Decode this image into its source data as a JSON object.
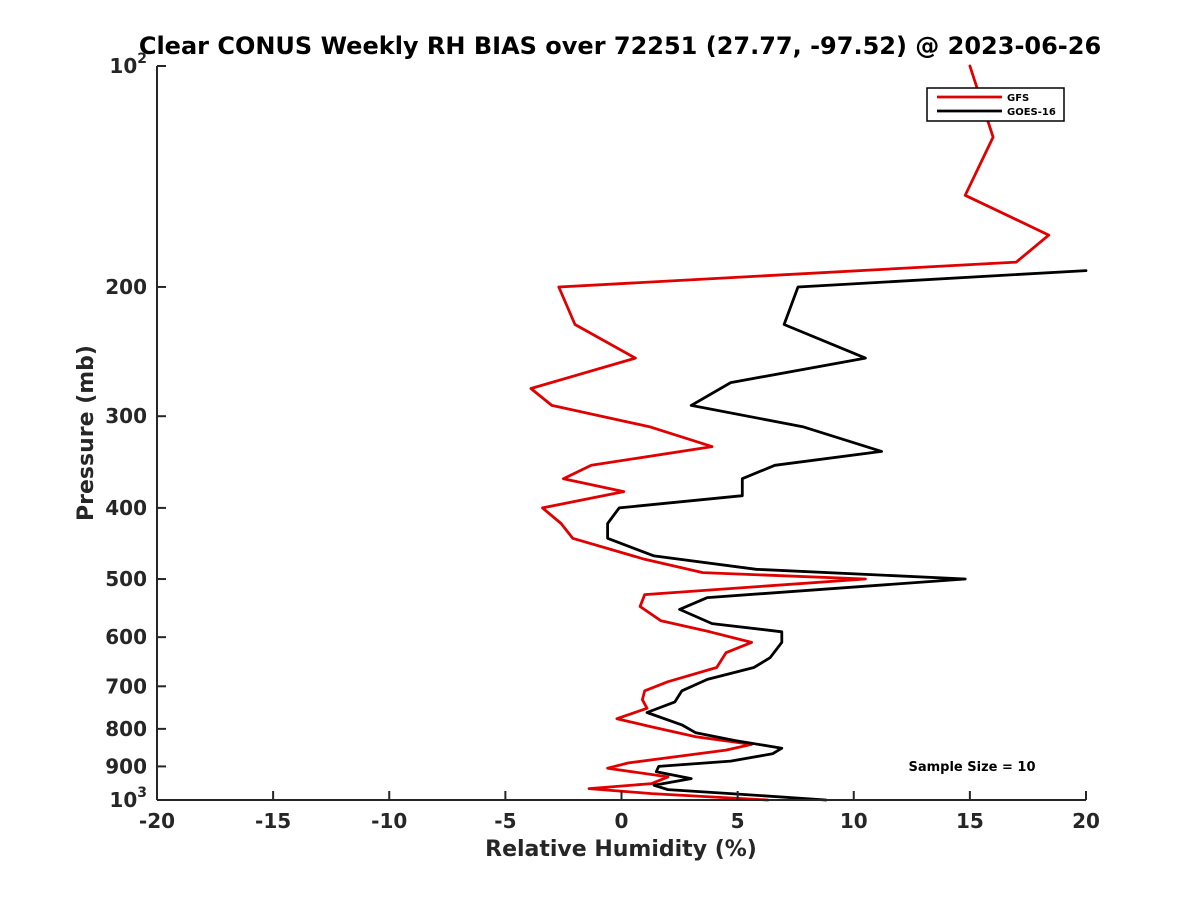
{
  "chart_data": {
    "type": "line",
    "title": "Clear CONUS Weekly RH BIAS over 72251 (27.77, -97.52) @ 2023-06-26",
    "xlabel": "Relative Humidity (%)",
    "ylabel": "Pressure (mb)",
    "xlim": [
      -20,
      20
    ],
    "ylim": [
      100,
      1000
    ],
    "y_scale": "log",
    "y_reversed": true,
    "grid": false,
    "legend_position": "top-right",
    "x_ticks": [
      {
        "value": -20,
        "label": "-20"
      },
      {
        "value": -15,
        "label": "-15"
      },
      {
        "value": -10,
        "label": "-10"
      },
      {
        "value": -5,
        "label": "-5"
      },
      {
        "value": 0,
        "label": "0"
      },
      {
        "value": 5,
        "label": "5"
      },
      {
        "value": 10,
        "label": "10"
      },
      {
        "value": 15,
        "label": "15"
      },
      {
        "value": 20,
        "label": "20"
      }
    ],
    "y_ticks": [
      {
        "value": 100,
        "label": "10",
        "sup": "2"
      },
      {
        "value": 200,
        "label": "200",
        "sup": ""
      },
      {
        "value": 300,
        "label": "300",
        "sup": ""
      },
      {
        "value": 400,
        "label": "400",
        "sup": ""
      },
      {
        "value": 500,
        "label": "500",
        "sup": ""
      },
      {
        "value": 600,
        "label": "600",
        "sup": ""
      },
      {
        "value": 700,
        "label": "700",
        "sup": ""
      },
      {
        "value": 800,
        "label": "800",
        "sup": ""
      },
      {
        "value": 900,
        "label": "900",
        "sup": ""
      },
      {
        "value": 1000,
        "label": "10",
        "sup": "3"
      }
    ],
    "annotation": "Sample Size = 10",
    "series": [
      {
        "name": "GFS",
        "color": "#e00000",
        "points": [
          [
            15.0,
            100
          ],
          [
            16.0,
            125
          ],
          [
            14.8,
            150
          ],
          [
            18.4,
            170
          ],
          [
            17.0,
            185
          ],
          [
            -2.7,
            200
          ],
          [
            -2.0,
            225
          ],
          [
            0.6,
            250
          ],
          [
            -3.9,
            275
          ],
          [
            -3.0,
            290
          ],
          [
            1.2,
            310
          ],
          [
            3.9,
            330
          ],
          [
            -1.3,
            350
          ],
          [
            -2.5,
            365
          ],
          [
            0.1,
            380
          ],
          [
            -3.4,
            400
          ],
          [
            -2.6,
            420
          ],
          [
            -2.1,
            440
          ],
          [
            1.0,
            470
          ],
          [
            3.5,
            490
          ],
          [
            10.5,
            500
          ],
          [
            1.0,
            525
          ],
          [
            0.8,
            545
          ],
          [
            1.7,
            570
          ],
          [
            3.8,
            590
          ],
          [
            5.6,
            610
          ],
          [
            4.5,
            630
          ],
          [
            4.1,
            660
          ],
          [
            2.0,
            690
          ],
          [
            1.0,
            710
          ],
          [
            0.9,
            730
          ],
          [
            1.1,
            750
          ],
          [
            -0.2,
            775
          ],
          [
            1.3,
            795
          ],
          [
            3.2,
            820
          ],
          [
            5.6,
            840
          ],
          [
            4.5,
            855
          ],
          [
            0.3,
            890
          ],
          [
            -0.6,
            905
          ],
          [
            2.0,
            930
          ],
          [
            1.3,
            950
          ],
          [
            -1.4,
            965
          ],
          [
            1.3,
            980
          ],
          [
            6.3,
            1000
          ]
        ]
      },
      {
        "name": "GOES-16",
        "color": "#000000",
        "points": [
          [
            20.0,
            190
          ],
          [
            7.6,
            200
          ],
          [
            7.0,
            225
          ],
          [
            10.5,
            250
          ],
          [
            4.7,
            270
          ],
          [
            3.0,
            290
          ],
          [
            7.8,
            310
          ],
          [
            11.2,
            335
          ],
          [
            6.6,
            350
          ],
          [
            5.2,
            365
          ],
          [
            5.2,
            385
          ],
          [
            -0.1,
            400
          ],
          [
            -0.6,
            420
          ],
          [
            -0.6,
            440
          ],
          [
            1.4,
            465
          ],
          [
            5.8,
            485
          ],
          [
            14.8,
            500
          ],
          [
            3.7,
            530
          ],
          [
            2.5,
            550
          ],
          [
            3.9,
            575
          ],
          [
            6.9,
            590
          ],
          [
            6.9,
            610
          ],
          [
            6.4,
            640
          ],
          [
            5.7,
            660
          ],
          [
            3.7,
            685
          ],
          [
            2.6,
            710
          ],
          [
            2.3,
            735
          ],
          [
            1.1,
            760
          ],
          [
            2.6,
            790
          ],
          [
            3.2,
            810
          ],
          [
            4.9,
            830
          ],
          [
            6.9,
            850
          ],
          [
            6.5,
            865
          ],
          [
            4.7,
            885
          ],
          [
            1.6,
            900
          ],
          [
            1.5,
            915
          ],
          [
            3.0,
            935
          ],
          [
            1.4,
            955
          ],
          [
            2.0,
            968
          ],
          [
            4.7,
            980
          ],
          [
            8.8,
            1000
          ]
        ]
      }
    ]
  }
}
